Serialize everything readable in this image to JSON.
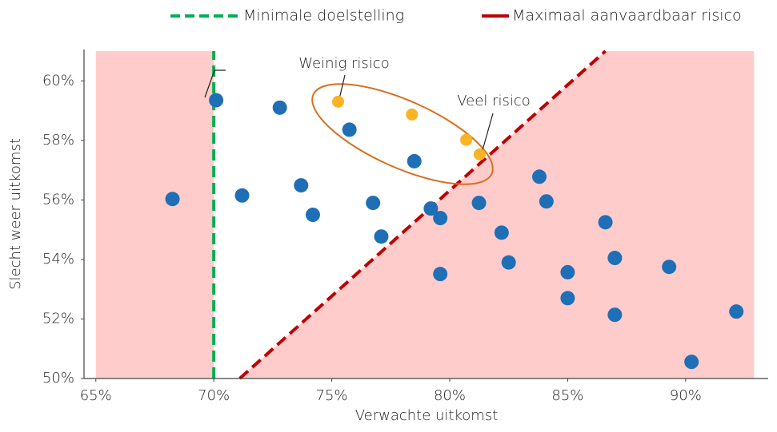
{
  "chart_data": {
    "type": "scatter",
    "xlabel": "Verwachte uitkomst",
    "ylabel": "Slecht weer uitkomst",
    "xlim": [
      64.5,
      93.5
    ],
    "ylim": [
      50,
      61
    ],
    "xticks": [
      {
        "value": 65,
        "label": "65%"
      },
      {
        "value": 70,
        "label": "70%"
      },
      {
        "value": 75,
        "label": "75%"
      },
      {
        "value": 80,
        "label": "80%"
      },
      {
        "value": 85,
        "label": "85%"
      },
      {
        "value": 90,
        "label": "90%"
      }
    ],
    "yticks": [
      {
        "value": 50,
        "label": "50%"
      },
      {
        "value": 52,
        "label": "52%"
      },
      {
        "value": 54,
        "label": "54%"
      },
      {
        "value": 56,
        "label": "56%"
      },
      {
        "value": 58,
        "label": "58%"
      },
      {
        "value": 60,
        "label": "60%"
      }
    ],
    "grid": false,
    "shade_color": "#ffcccc",
    "shade_xlim": [
      65,
      92.9
    ],
    "series": [
      {
        "color": "#1f6fb6",
        "x": [
          68.25,
          70.1,
          72.8,
          75.75,
          71.2,
          73.7,
          74.2,
          76.75,
          77.1,
          78.5,
          79.2,
          79.6,
          79.6,
          81.24,
          82.2,
          82.5,
          83.8,
          84.1,
          85.0,
          85.0,
          86.6,
          87.0,
          87.0,
          89.3,
          90.25,
          92.15
        ],
        "values": [
          56.03,
          59.35,
          59.1,
          58.36,
          56.15,
          56.49,
          55.5,
          55.9,
          54.77,
          57.3,
          55.71,
          55.39,
          53.51,
          55.9,
          54.9,
          53.9,
          56.78,
          55.95,
          53.57,
          52.7,
          55.25,
          54.05,
          52.14,
          53.75,
          50.56,
          52.25
        ]
      },
      {
        "color": "#fbb423",
        "x": [
          75.27,
          78.4,
          80.7,
          81.27
        ],
        "values": [
          59.3,
          58.87,
          58.02,
          57.53
        ]
      }
    ],
    "lines": [
      {
        "name": "Minimale doelstelling",
        "color": "#00b050",
        "x": [
          70,
          70
        ],
        "values": [
          50,
          61
        ]
      },
      {
        "name": "Maximaal aanvaardbaar risico",
        "color": "#c00000",
        "x": [
          71.1,
          86.6
        ],
        "values": [
          50,
          61
        ]
      }
    ],
    "annotations": [
      "Weinig risico",
      "Veel risico"
    ]
  }
}
